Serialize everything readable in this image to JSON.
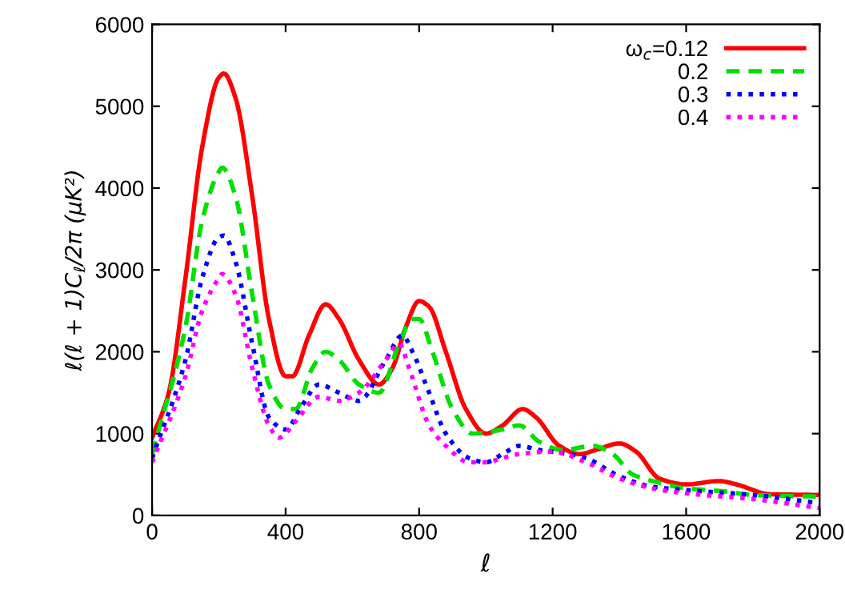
{
  "chart_data": {
    "type": "line",
    "xlabel": "ℓ",
    "ylabel": "ℓ(ℓ + 1)C$_{ℓ}$/2π (μK²)",
    "xlim": [
      0,
      2000
    ],
    "ylim": [
      0,
      6000
    ],
    "xticks": [
      0,
      400,
      800,
      1200,
      1600,
      2000
    ],
    "yticks": [
      0,
      1000,
      2000,
      3000,
      4000,
      5000,
      6000
    ],
    "grid": false,
    "legend": "top right",
    "marker": "none",
    "series": [
      {
        "name": "ω$_{c}$=0.12",
        "color": "#ff0000",
        "line_style": "solid",
        "x": [
          0,
          50,
          100,
          150,
          200,
          215,
          250,
          300,
          350,
          400,
          420,
          470,
          520,
          560,
          620,
          680,
          720,
          760,
          800,
          830,
          880,
          940,
          1000,
          1050,
          1110,
          1150,
          1220,
          1280,
          1330,
          1400,
          1450,
          1520,
          1600,
          1700,
          1750,
          1850,
          2000
        ],
        "values": [
          950,
          1500,
          2900,
          4500,
          5350,
          5400,
          5100,
          3900,
          2400,
          1700,
          1700,
          2200,
          2580,
          2400,
          1900,
          1600,
          1800,
          2300,
          2620,
          2550,
          2000,
          1300,
          1000,
          1100,
          1300,
          1200,
          850,
          750,
          800,
          880,
          780,
          450,
          380,
          420,
          380,
          260,
          250
        ]
      },
      {
        "name": "0.2",
        "color": "#00e000",
        "line_style": "dashed",
        "x": [
          0,
          100,
          150,
          200,
          210,
          250,
          300,
          350,
          400,
          430,
          480,
          520,
          560,
          620,
          680,
          740,
          780,
          800,
          840,
          900,
          960,
          1050,
          1100,
          1160,
          1230,
          1320,
          1380,
          1440,
          1520,
          1600,
          1700,
          1800,
          2000
        ],
        "values": [
          750,
          2300,
          3600,
          4200,
          4250,
          3900,
          2700,
          1600,
          1300,
          1300,
          1800,
          2000,
          1900,
          1600,
          1500,
          2100,
          2400,
          2400,
          2000,
          1300,
          1000,
          1050,
          1100,
          900,
          800,
          850,
          750,
          500,
          400,
          330,
          300,
          250,
          230
        ]
      },
      {
        "name": "0.3",
        "color": "#0000ff",
        "line_style": "dotted",
        "x": [
          0,
          100,
          150,
          200,
          215,
          250,
          300,
          350,
          400,
          450,
          500,
          560,
          620,
          700,
          750,
          780,
          830,
          880,
          950,
          1000,
          1050,
          1100,
          1160,
          1250,
          1300,
          1400,
          1500,
          1600,
          1800,
          2000
        ],
        "values": [
          700,
          1900,
          2900,
          3400,
          3420,
          3100,
          2100,
          1200,
          1050,
          1350,
          1600,
          1500,
          1400,
          1900,
          2200,
          2000,
          1500,
          1000,
          700,
          650,
          750,
          850,
          800,
          750,
          700,
          480,
          350,
          310,
          250,
          150
        ]
      },
      {
        "name": "0.4",
        "color": "#ff00ff",
        "line_style": "dotted",
        "x": [
          0,
          100,
          150,
          200,
          210,
          250,
          300,
          350,
          380,
          430,
          500,
          560,
          620,
          700,
          740,
          770,
          830,
          880,
          950,
          1000,
          1050,
          1100,
          1200,
          1300,
          1400,
          1500,
          1600,
          1800,
          2000
        ],
        "values": [
          650,
          1700,
          2500,
          2900,
          2950,
          2700,
          1800,
          1100,
          950,
          1150,
          1450,
          1400,
          1500,
          1900,
          2100,
          1800,
          1100,
          850,
          650,
          650,
          700,
          750,
          780,
          650,
          450,
          330,
          270,
          200,
          90
        ]
      }
    ]
  }
}
